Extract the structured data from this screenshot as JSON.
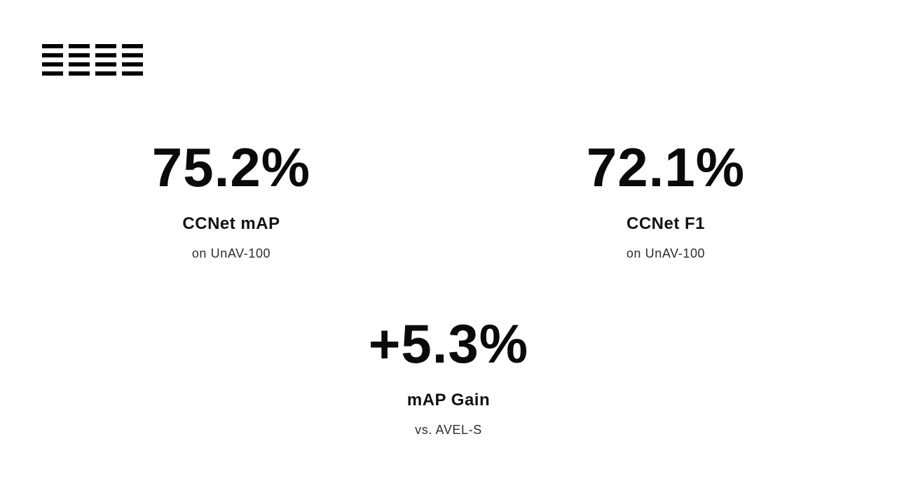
{
  "logo": {
    "icon": "bars-grid-logo-icon",
    "rows": 4,
    "columns": 4,
    "color": "#000000"
  },
  "stats": [
    {
      "value": "75.2%",
      "label": "CCNet mAP",
      "sub": "on UnAV-100"
    },
    {
      "value": "72.1%",
      "label": "CCNet F1",
      "sub": "on UnAV-100"
    },
    {
      "value": "+5.3%",
      "label": "mAP Gain",
      "sub": "vs. AVEL-S"
    }
  ],
  "colors": {
    "background": "#ffffff",
    "text_primary": "#0a0a0a",
    "text_label": "#111111",
    "text_secondary": "#2d2d2d",
    "logo": "#000000"
  }
}
